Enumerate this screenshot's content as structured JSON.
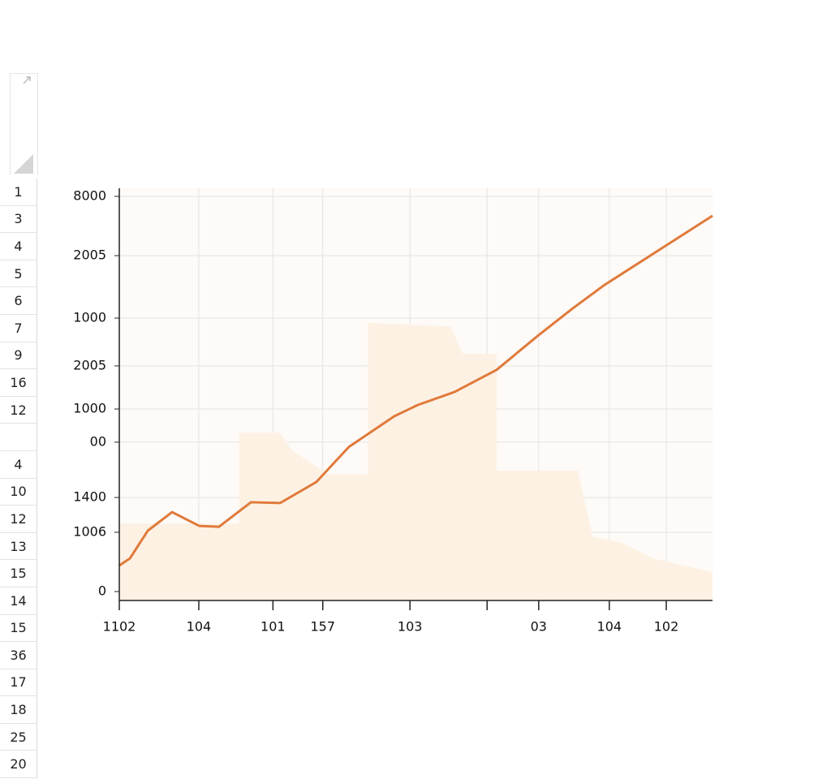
{
  "row_headers": [
    "1",
    "3",
    "4",
    "5",
    "6",
    "7",
    "9",
    "16",
    "12",
    null,
    "4",
    "10",
    "12",
    "13",
    "15",
    "14",
    "15",
    "36",
    "17",
    "18",
    "25",
    "20"
  ],
  "chart_data": {
    "type": "line",
    "xlim": [
      0,
      100
    ],
    "ylim": [
      0,
      100
    ],
    "xticks": [
      {
        "value": 0,
        "label": "1102"
      },
      {
        "value": 13.4,
        "label": "104"
      },
      {
        "value": 25.9,
        "label": "101"
      },
      {
        "value": 34.3,
        "label": "157"
      },
      {
        "value": 49,
        "label": "103"
      },
      {
        "value": 62,
        "label": null
      },
      {
        "value": 70.7,
        "label": "03"
      },
      {
        "value": 82.6,
        "label": "104"
      },
      {
        "value": 92.2,
        "label": "102"
      }
    ],
    "yticks": [
      0,
      {
        "value": 15,
        "label": "1006"
      },
      {
        "value": 23.8,
        "label": "1400"
      },
      {
        "value": 37.8,
        "label": "00"
      },
      {
        "value": 46.2,
        "label": "1000"
      },
      {
        "value": 57.1,
        "label": "2005"
      },
      {
        "value": 69.2,
        "label": "1000"
      },
      {
        "value": 85,
        "label": "2005"
      },
      {
        "value": 100,
        "label": "8000"
      }
    ],
    "grid": true,
    "series": [
      {
        "type": "area",
        "color": "#fdf1e4",
        "x": [
          0,
          20.2,
          20.2,
          27.1,
          29.1,
          35.3,
          41.9,
          41.9,
          55.8,
          57.9,
          63.6,
          63.6,
          77.3,
          79.8,
          84.5,
          90,
          100
        ],
        "values": [
          17.2,
          17.2,
          40.2,
          40.2,
          35.7,
          29.6,
          29.6,
          68.0,
          67.1,
          60.2,
          60.2,
          30.6,
          30.6,
          13.8,
          12.5,
          8.4,
          4.9
        ]
      },
      {
        "type": "line",
        "color": "#e07a3a",
        "x": [
          0,
          1.8,
          4.8,
          8.9,
          13.5,
          16.8,
          22.2,
          27.1,
          33.2,
          38.7,
          46.4,
          50.3,
          56.5,
          63.6,
          70.7,
          76.3,
          81.8,
          92.1,
          100
        ],
        "values": [
          6.6,
          8.4,
          15.4,
          20.1,
          16.6,
          16.4,
          22.6,
          22.4,
          27.7,
          36.6,
          44.4,
          47.2,
          50.5,
          56.1,
          64.9,
          71.5,
          77.6,
          87.5,
          95.1
        ]
      }
    ]
  }
}
